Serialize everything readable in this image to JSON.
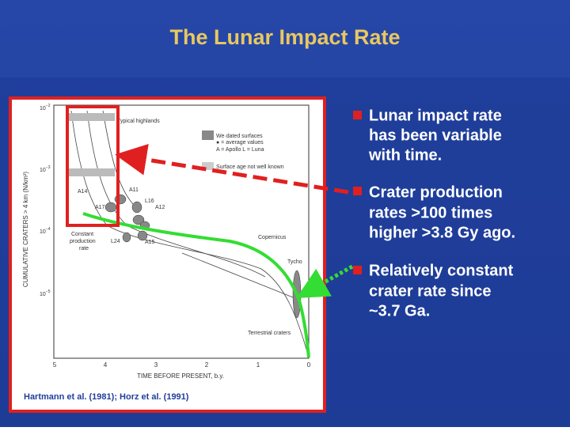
{
  "slide": {
    "title": "The Lunar Impact Rate",
    "bullets": [
      {
        "lines": [
          "Lunar impact rate",
          "has been variable",
          "with time."
        ]
      },
      {
        "lines": [
          "Crater production",
          "rates >100 times",
          "higher >3.8 Gy ago."
        ]
      },
      {
        "lines": [
          "Relatively constant",
          "crater rate since",
          "~3.7 Ga."
        ]
      }
    ],
    "citation": "Hartmann et al. (1981); Horz et al. (1991)"
  },
  "figure": {
    "y_axis_label": "CUMULATIVE CRATERS > 4 km (N/km²)",
    "x_axis_label": "TIME BEFORE PRESENT, b.y.",
    "y_ticks": [
      {
        "base": "10",
        "exp": "−2"
      },
      {
        "base": "10",
        "exp": "−3"
      },
      {
        "base": "10",
        "exp": "−4"
      },
      {
        "base": "10",
        "exp": "−5"
      }
    ],
    "x_ticks": [
      "5",
      "4",
      "3",
      "2",
      "1",
      "0"
    ],
    "legend": [
      "We·dated surfaces",
      "● = average values",
      "A = Apollo   L = Luna",
      "Surface age not well known"
    ],
    "annotations": [
      "Typical highlands",
      "A14",
      "A11",
      "L16",
      "A17",
      "A12",
      "L24",
      "A15",
      "Constant",
      "production",
      "rate",
      "Copernicus",
      "Tycho",
      "Terrestrial craters"
    ]
  }
}
